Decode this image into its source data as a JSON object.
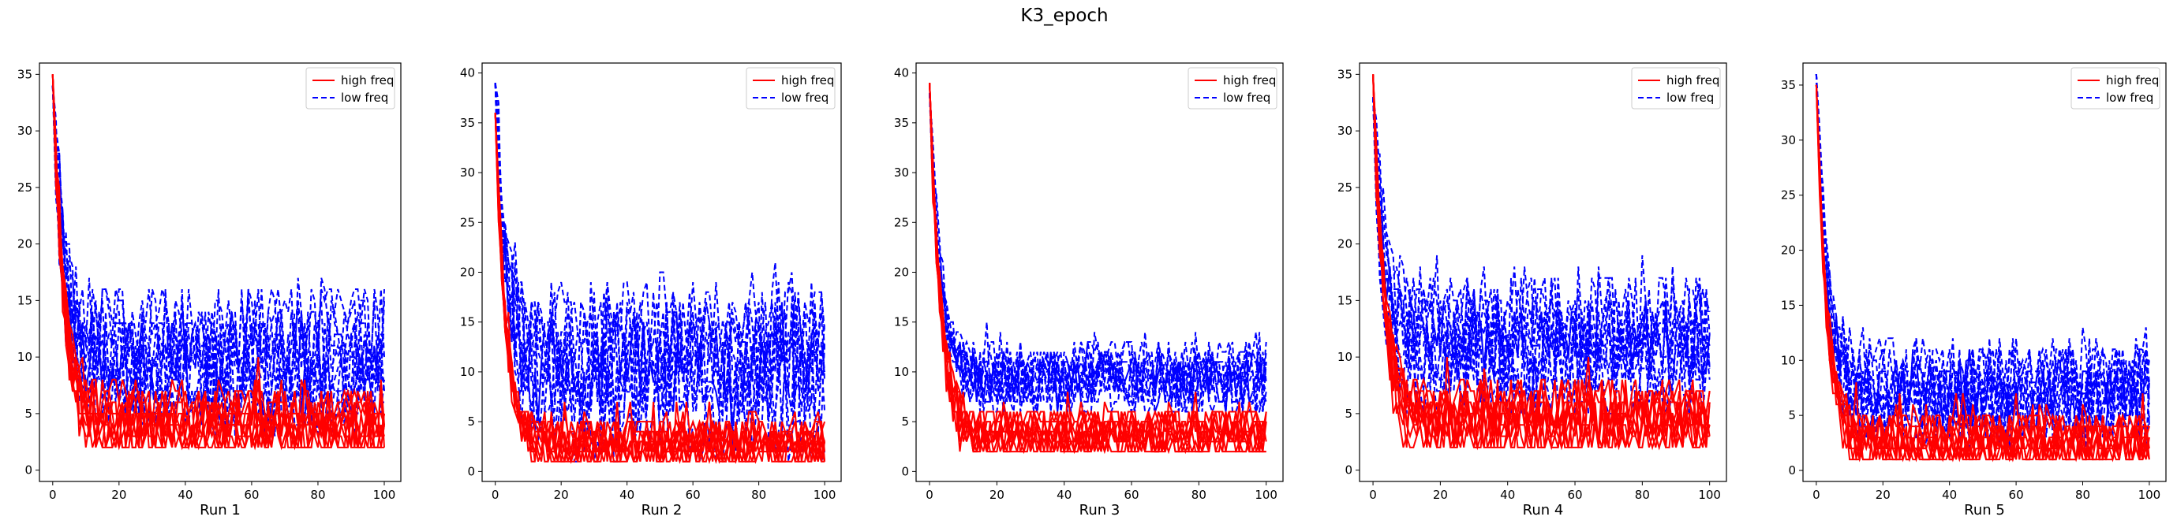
{
  "figure": {
    "title": "K3_epoch"
  },
  "chart_data": [
    {
      "type": "line",
      "xlabel": "Run 1",
      "xlim": [
        -4,
        105
      ],
      "ylim": [
        -1,
        36
      ],
      "xticks": [
        0,
        20,
        40,
        60,
        80,
        100
      ],
      "yticks": [
        0,
        5,
        10,
        15,
        20,
        25,
        30,
        35
      ],
      "legend_position": "top-right",
      "legend": [
        "high freq",
        "low freq"
      ],
      "colors": {
        "high": "#ff0000",
        "low": "#0000ff"
      },
      "start": [
        35,
        34
      ],
      "high": {
        "count": 10,
        "center": 4,
        "floor": 2,
        "spread": 1.6
      },
      "low": {
        "count": 10,
        "center": 10,
        "floor": 2,
        "spread": 3.5
      }
    },
    {
      "type": "line",
      "xlabel": "Run 2",
      "xlim": [
        -4,
        105
      ],
      "ylim": [
        -1,
        41
      ],
      "xticks": [
        0,
        20,
        40,
        60,
        80,
        100
      ],
      "yticks": [
        0,
        5,
        10,
        15,
        20,
        25,
        30,
        35,
        40
      ],
      "legend_position": "top-right",
      "legend": [
        "high freq",
        "low freq"
      ],
      "colors": {
        "high": "#ff0000",
        "low": "#0000ff"
      },
      "start": [
        36,
        39
      ],
      "high": {
        "count": 10,
        "center": 2.5,
        "floor": 1,
        "spread": 1.2
      },
      "low": {
        "count": 10,
        "center": 10,
        "floor": 1,
        "spread": 5
      }
    },
    {
      "type": "line",
      "xlabel": "Run 3",
      "xlim": [
        -4,
        105
      ],
      "ylim": [
        -1,
        41
      ],
      "xticks": [
        0,
        20,
        40,
        60,
        80,
        100
      ],
      "yticks": [
        0,
        5,
        10,
        15,
        20,
        25,
        30,
        35,
        40
      ],
      "legend_position": "top-right",
      "legend": [
        "high freq",
        "low freq"
      ],
      "colors": {
        "high": "#ff0000",
        "low": "#0000ff"
      },
      "start": [
        39,
        38
      ],
      "high": {
        "count": 10,
        "center": 3.5,
        "floor": 2,
        "spread": 1.3
      },
      "low": {
        "count": 10,
        "center": 10.5,
        "floor": 6,
        "spread": 2.2
      }
    },
    {
      "type": "line",
      "xlabel": "Run 4",
      "xlim": [
        -4,
        105
      ],
      "ylim": [
        -1,
        36
      ],
      "xticks": [
        0,
        20,
        40,
        60,
        80,
        100
      ],
      "yticks": [
        0,
        5,
        10,
        15,
        20,
        25,
        30,
        35
      ],
      "legend_position": "top-right",
      "legend": [
        "high freq",
        "low freq"
      ],
      "colors": {
        "high": "#ff0000",
        "low": "#0000ff"
      },
      "start": [
        35,
        33
      ],
      "high": {
        "count": 10,
        "center": 4,
        "floor": 2,
        "spread": 1.8
      },
      "low": {
        "count": 10,
        "center": 11,
        "floor": 5,
        "spread": 3.5
      }
    },
    {
      "type": "line",
      "xlabel": "Run 5",
      "xlim": [
        -4,
        105
      ],
      "ylim": [
        -1,
        37
      ],
      "xticks": [
        0,
        20,
        40,
        60,
        80,
        100
      ],
      "yticks": [
        0,
        5,
        10,
        15,
        20,
        25,
        30,
        35
      ],
      "legend_position": "top-right",
      "legend": [
        "high freq",
        "low freq"
      ],
      "colors": {
        "high": "#ff0000",
        "low": "#0000ff"
      },
      "start": [
        35,
        36
      ],
      "high": {
        "count": 10,
        "center": 2.5,
        "floor": 1,
        "spread": 1.2
      },
      "low": {
        "count": 10,
        "center": 6,
        "floor": 2,
        "spread": 2.8
      }
    }
  ]
}
